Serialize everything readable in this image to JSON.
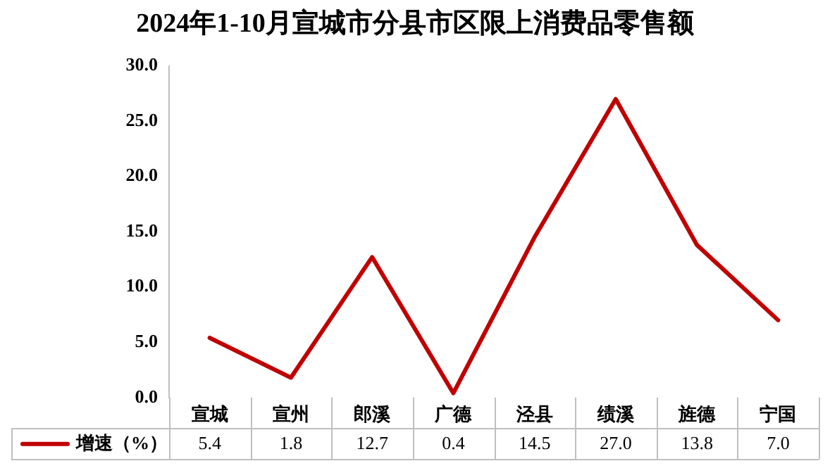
{
  "chart_data": {
    "type": "line",
    "title": "2024年1-10月宣城市分县市区限上消费品零售额",
    "categories": [
      "宣城",
      "宣州",
      "郎溪",
      "广德",
      "泾县",
      "绩溪",
      "旌德",
      "宁国"
    ],
    "series": [
      {
        "name": "增速（%）",
        "color": "#c00000",
        "values": [
          5.4,
          1.8,
          12.7,
          0.4,
          14.5,
          27.0,
          13.8,
          7.0
        ],
        "value_labels": [
          "5.4",
          "1.8",
          "12.7",
          "0.4",
          "14.5",
          "27.0",
          "13.8",
          "7.0"
        ]
      }
    ],
    "ylim": [
      0,
      30
    ],
    "yticks": [
      {
        "value": 0,
        "label": "0.0"
      },
      {
        "value": 5,
        "label": "5.0"
      },
      {
        "value": 10,
        "label": "10.0"
      },
      {
        "value": 15,
        "label": "15.0"
      },
      {
        "value": 20,
        "label": "20.0"
      },
      {
        "value": 25,
        "label": "25.0"
      },
      {
        "value": 30,
        "label": "30.0"
      }
    ],
    "grid": false,
    "legend": "bottom left",
    "marker": "none",
    "line_style": "solid"
  }
}
